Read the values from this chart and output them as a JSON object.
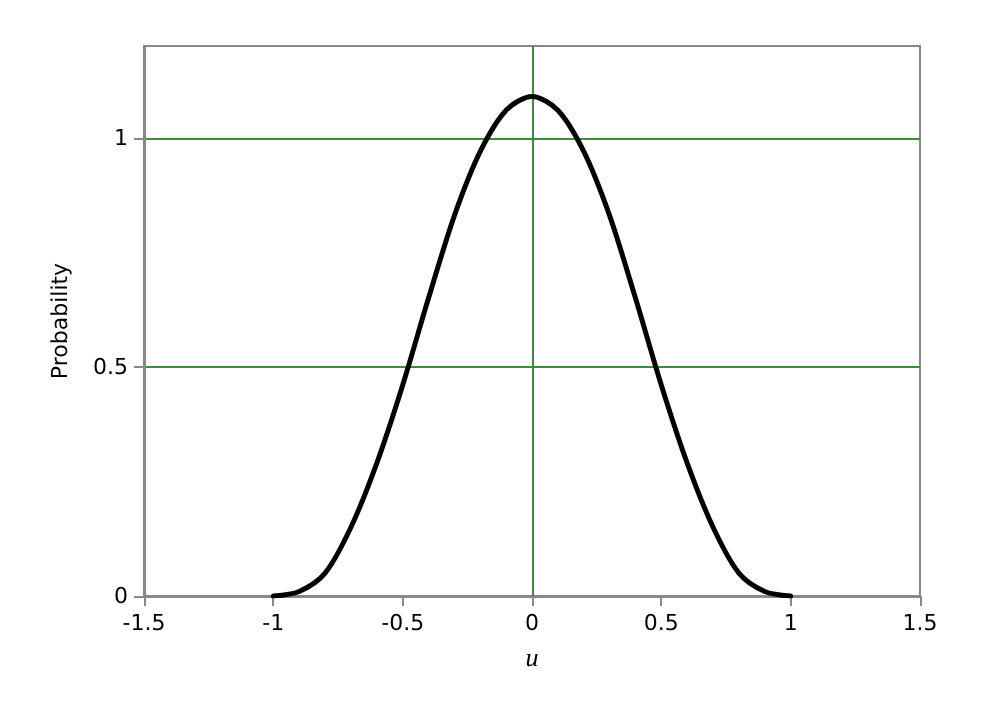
{
  "chart_data": {
    "type": "line",
    "xlabel": "u",
    "ylabel": "Probability",
    "x": [
      -1,
      -0.9,
      -0.8,
      -0.7,
      -0.6,
      -0.5,
      -0.4,
      -0.3,
      -0.2,
      -0.1,
      0,
      0.1,
      0.2,
      0.3,
      0.4,
      0.5,
      0.6,
      0.7,
      0.8,
      0.9,
      1
    ],
    "series": [
      {
        "color": "#000000",
        "values": [
          0,
          0.01,
          0.05,
          0.15,
          0.29,
          0.46,
          0.65,
          0.83,
          0.97,
          1.06,
          1.09,
          1.06,
          0.97,
          0.83,
          0.65,
          0.46,
          0.29,
          0.15,
          0.05,
          0.01,
          0
        ]
      }
    ],
    "xlim": [
      -1.5,
      1.5
    ],
    "xticks": [
      -1.5,
      -1,
      -0.5,
      0,
      0.5,
      1,
      1.5
    ],
    "ylim": [
      0,
      1.2
    ],
    "yticks": [
      0,
      0.5,
      1
    ],
    "grid": "y",
    "marker": "none",
    "line_style": "solid",
    "ref_lines": [
      {
        "axis": "x",
        "value": 0,
        "color": "#3c8c3c"
      }
    ]
  }
}
